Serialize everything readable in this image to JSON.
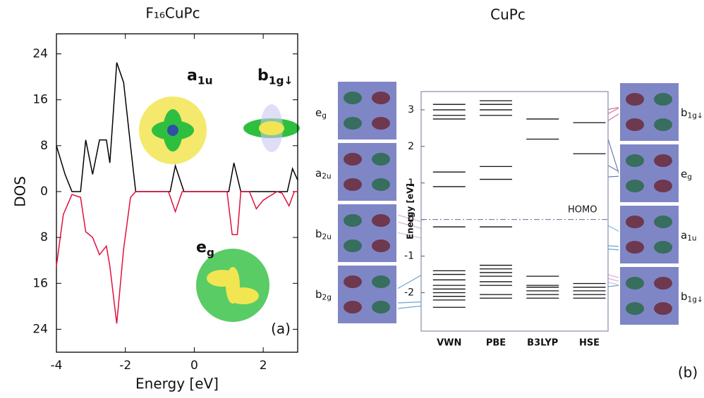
{
  "chart_data": [
    {
      "type": "line",
      "title": "F₁₆CuPc",
      "xlabel": "Energy [eV]",
      "ylabel": "DOS",
      "panel_label": "(a)",
      "xlim": [
        -4,
        3
      ],
      "xticks": [
        -4,
        -2,
        0,
        2
      ],
      "ylim": [
        -28,
        27.5
      ],
      "yticks": [
        {
          "value": -24,
          "label": "24"
        },
        {
          "value": -16,
          "label": "16"
        },
        {
          "value": -8,
          "label": "8"
        },
        0,
        8,
        16,
        24
      ],
      "series": [
        {
          "color": "#000000",
          "x": [
            -4,
            -3.75,
            -3.55,
            -3.3,
            -3.15,
            -2.95,
            -2.75,
            -2.55,
            -2.45,
            -2.25,
            -2.05,
            -1.85,
            -1.7,
            -0.7,
            -0.55,
            -0.3,
            1.0,
            1.15,
            1.35,
            2.7,
            2.85,
            3
          ],
          "values": [
            8,
            3,
            0,
            0,
            9,
            3,
            9,
            9,
            5,
            22.5,
            19,
            8,
            0,
            0,
            4.5,
            0,
            0,
            5,
            0,
            0,
            4,
            2
          ]
        },
        {
          "color": "#e0103a",
          "x": [
            -4,
            -3.8,
            -3.55,
            -3.3,
            -3.15,
            -2.95,
            -2.75,
            -2.55,
            -2.45,
            -2.25,
            -2.05,
            -1.85,
            -1.7,
            -0.75,
            -0.55,
            -0.35,
            0.95,
            1.1,
            1.25,
            1.35,
            1.6,
            1.8,
            2.0,
            2.4,
            2.55,
            2.75,
            2.9,
            3
          ],
          "values": [
            -13,
            -4,
            -0.5,
            -1,
            -7,
            -8,
            -11,
            -9.5,
            -13,
            -23,
            -10,
            -1,
            0,
            0,
            -3.5,
            0,
            0,
            -7.5,
            -7.5,
            0,
            0,
            -3,
            -1.5,
            0,
            -0.3,
            -2.5,
            0,
            0
          ]
        }
      ],
      "annotations": [
        {
          "base": "a",
          "sub": "1u"
        },
        {
          "base": "b",
          "sub": "1g↓"
        },
        {
          "base": "e",
          "sub": "g"
        }
      ]
    },
    {
      "type": "energy-level",
      "title": "CuPc",
      "ylabel": "Energy [eV]",
      "panel_label": "(b)",
      "annotation": "HOMO",
      "categories": [
        "VWN",
        "PBE",
        "B3LYP",
        "HSE"
      ],
      "levels": [
        [
          3.15,
          3.0,
          2.85,
          2.75,
          1.3,
          0.9,
          -0.2,
          -1.4,
          -1.5,
          -1.65,
          -1.8,
          -1.9,
          -2.0,
          -2.1,
          -2.2,
          -2.4
        ],
        [
          3.25,
          3.15,
          3.0,
          2.85,
          1.45,
          1.1,
          -0.2,
          -1.25,
          -1.35,
          -1.45,
          -1.55,
          -1.7,
          -1.8,
          -2.05,
          -2.15
        ],
        [
          2.75,
          2.2,
          -1.55,
          -1.8,
          -1.85,
          -1.95,
          -2.05,
          -2.15
        ],
        [
          2.65,
          1.8,
          -1.75,
          -1.85,
          -1.95,
          -2.05,
          -2.15
        ]
      ],
      "color": "#111111",
      "ylim": [
        -3.05,
        3.5
      ],
      "yticks": [
        -2,
        -1,
        0,
        1,
        2,
        3
      ],
      "orbitals_left": [
        {
          "base": "e",
          "sub": "g"
        },
        {
          "base": "a",
          "sub": "2u"
        },
        {
          "base": "b",
          "sub": "2u"
        },
        {
          "base": "b",
          "sub": "2g"
        }
      ],
      "orbitals_right": [
        {
          "base": "b",
          "sub": "1g↓"
        },
        {
          "base": "e",
          "sub": "g"
        },
        {
          "base": "a",
          "sub": "1u"
        },
        {
          "base": "b",
          "sub": "1g↓"
        }
      ]
    }
  ]
}
